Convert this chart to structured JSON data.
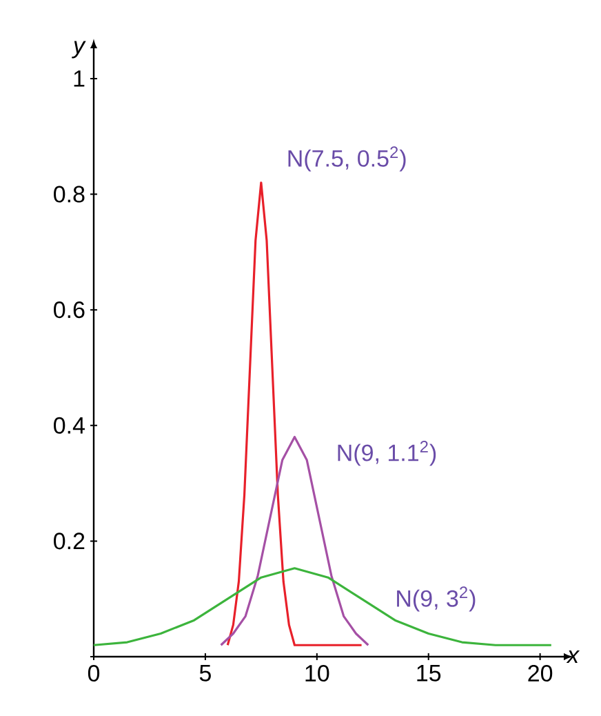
{
  "chart_data": {
    "type": "line",
    "xlabel": "x",
    "ylabel": "y",
    "xlim": [
      0,
      21
    ],
    "ylim": [
      0,
      1.05
    ],
    "xticks": [
      0,
      5,
      10,
      15,
      20
    ],
    "yticks": [
      {
        "value": 0,
        "label": null
      },
      0.2,
      0.4,
      0.6,
      0.8,
      1
    ],
    "series": [
      {
        "color": "#e8202a",
        "x": [
          6,
          6.25,
          6.5,
          6.75,
          7,
          7.25,
          7.5,
          7.75,
          8,
          8.25,
          8.5,
          8.75,
          9,
          12
        ],
        "values": [
          0.02,
          0.055,
          0.13,
          0.28,
          0.5,
          0.72,
          0.82,
          0.72,
          0.5,
          0.28,
          0.13,
          0.055,
          0.02,
          0.02
        ]
      },
      {
        "color": "#a550a5",
        "x": [
          5.7,
          6.25,
          6.8,
          7.35,
          7.9,
          8.45,
          9,
          9.55,
          10.1,
          10.65,
          11.2,
          11.75,
          12.3
        ],
        "values": [
          0.02,
          0.04,
          0.07,
          0.14,
          0.24,
          0.34,
          0.38,
          0.34,
          0.24,
          0.14,
          0.07,
          0.04,
          0.02
        ]
      },
      {
        "color": "#3cb43c",
        "x": [
          0,
          1.5,
          3,
          4.5,
          6,
          7.5,
          9,
          10.5,
          12,
          13.5,
          15,
          16.5,
          18,
          20.5
        ],
        "values": [
          0.02,
          0.025,
          0.04,
          0.063,
          0.1,
          0.137,
          0.153,
          0.137,
          0.1,
          0.063,
          0.04,
          0.025,
          0.02,
          0.02
        ]
      }
    ],
    "annotations": [
      "N(7.5, 0.5$^{2}$)",
      "N(9, 1.1$^{2}$)",
      "N(9, 3$^{2}$)"
    ]
  }
}
